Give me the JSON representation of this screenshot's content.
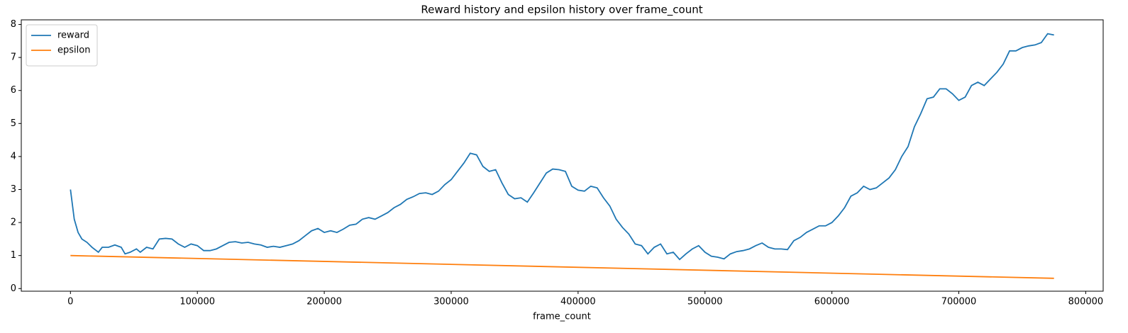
{
  "chart_data": {
    "type": "line",
    "title": "Reward history and epsilon history over frame_count",
    "xlabel": "frame_count",
    "xlim": [
      -38750,
      813750
    ],
    "ylim": [
      -0.08,
      8.14
    ],
    "xticks": [
      0,
      100000,
      200000,
      300000,
      400000,
      500000,
      600000,
      700000,
      800000
    ],
    "yticks": [
      0,
      1,
      2,
      3,
      4,
      5,
      6,
      7,
      8
    ],
    "grid": false,
    "legend": "upper left",
    "series": [
      {
        "name": "reward",
        "color": "#1f77b4",
        "x": [
          0,
          3000,
          6000,
          9000,
          13000,
          17000,
          22000,
          25000,
          30000,
          35000,
          40000,
          43000,
          47000,
          52000,
          55000,
          60000,
          65000,
          70000,
          75000,
          80000,
          85000,
          90000,
          95000,
          100000,
          105000,
          110000,
          115000,
          120000,
          125000,
          130000,
          135000,
          140000,
          145000,
          150000,
          155000,
          160000,
          165000,
          170000,
          175000,
          180000,
          185000,
          190000,
          195000,
          200000,
          205000,
          210000,
          215000,
          220000,
          225000,
          230000,
          235000,
          240000,
          245000,
          250000,
          255000,
          260000,
          265000,
          270000,
          275000,
          280000,
          285000,
          290000,
          295000,
          300000,
          305000,
          310000,
          315000,
          320000,
          325000,
          330000,
          335000,
          340000,
          345000,
          350000,
          355000,
          360000,
          365000,
          370000,
          375000,
          380000,
          385000,
          390000,
          395000,
          400000,
          405000,
          410000,
          415000,
          420000,
          425000,
          430000,
          435000,
          440000,
          445000,
          450000,
          455000,
          460000,
          465000,
          470000,
          475000,
          480000,
          485000,
          490000,
          495000,
          500000,
          505000,
          510000,
          515000,
          520000,
          525000,
          530000,
          535000,
          540000,
          545000,
          550000,
          555000,
          560000,
          565000,
          570000,
          575000,
          580000,
          585000,
          590000,
          595000,
          600000,
          605000,
          610000,
          615000,
          620000,
          625000,
          630000,
          635000,
          640000,
          645000,
          650000,
          655000,
          660000,
          665000,
          670000,
          675000,
          680000,
          685000,
          690000,
          695000,
          700000,
          705000,
          710000,
          715000,
          720000,
          725000,
          730000,
          735000,
          740000,
          745000,
          750000,
          755000,
          760000,
          765000,
          770000,
          775000
        ],
        "values": [
          3.0,
          2.1,
          1.7,
          1.5,
          1.4,
          1.25,
          1.1,
          1.25,
          1.25,
          1.32,
          1.25,
          1.05,
          1.1,
          1.2,
          1.1,
          1.25,
          1.2,
          1.5,
          1.52,
          1.5,
          1.35,
          1.25,
          1.35,
          1.3,
          1.15,
          1.15,
          1.2,
          1.3,
          1.4,
          1.42,
          1.38,
          1.4,
          1.35,
          1.32,
          1.25,
          1.28,
          1.25,
          1.3,
          1.35,
          1.45,
          1.6,
          1.75,
          1.82,
          1.7,
          1.75,
          1.7,
          1.8,
          1.92,
          1.95,
          2.1,
          2.15,
          2.1,
          2.2,
          2.3,
          2.45,
          2.55,
          2.7,
          2.78,
          2.88,
          2.9,
          2.85,
          2.95,
          3.15,
          3.3,
          3.55,
          3.8,
          4.1,
          4.05,
          3.7,
          3.55,
          3.6,
          3.2,
          2.85,
          2.72,
          2.75,
          2.62,
          2.9,
          3.2,
          3.5,
          3.62,
          3.6,
          3.55,
          3.1,
          2.98,
          2.95,
          3.1,
          3.05,
          2.75,
          2.5,
          2.1,
          1.85,
          1.65,
          1.35,
          1.3,
          1.05,
          1.25,
          1.35,
          1.05,
          1.1,
          0.88,
          1.05,
          1.2,
          1.3,
          1.1,
          0.98,
          0.95,
          0.9,
          1.05,
          1.12,
          1.15,
          1.2,
          1.3,
          1.38,
          1.25,
          1.2,
          1.2,
          1.18,
          1.45,
          1.55,
          1.7,
          1.8,
          1.9,
          1.9,
          2.0,
          2.2,
          2.45,
          2.8,
          2.9,
          3.1,
          3.0,
          3.05,
          3.2,
          3.35,
          3.6,
          4.0,
          4.3,
          4.9,
          5.3,
          5.75,
          5.8,
          6.05,
          6.05,
          5.9,
          5.7,
          5.8,
          6.15,
          6.25,
          6.15,
          6.35,
          6.55,
          6.8,
          7.2,
          7.2,
          7.3,
          7.35,
          7.38,
          7.45,
          7.72,
          7.68
        ]
      },
      {
        "name": "epsilon",
        "color": "#ff7f0e",
        "x": [
          0,
          775000
        ],
        "values": [
          1.0,
          0.31
        ]
      }
    ]
  }
}
